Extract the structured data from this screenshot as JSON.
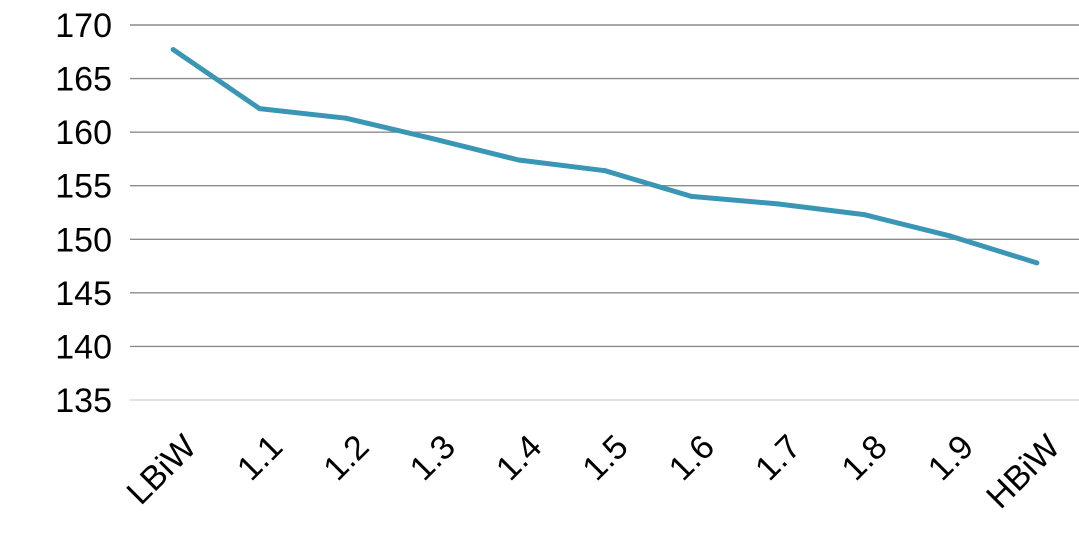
{
  "chart_data": {
    "type": "line",
    "title": "",
    "xlabel": "",
    "ylabel": "",
    "categories": [
      "LBiW",
      "1.1",
      "1.2",
      "1.3",
      "1.4",
      "1.5",
      "1.6",
      "1.7",
      "1.8",
      "1.9",
      "HBiW"
    ],
    "series": [
      {
        "values": [
          167.7,
          162.2,
          161.3,
          159.4,
          157.4,
          156.4,
          154.0,
          153.3,
          152.3,
          150.3,
          147.8
        ],
        "color": "#3a96b5"
      }
    ],
    "ylim": [
      135,
      170
    ],
    "ytick_step": 5,
    "yticks": [
      "135",
      "140",
      "145",
      "150",
      "155",
      "160",
      "165",
      "170"
    ],
    "grid": true,
    "legend": "none"
  }
}
